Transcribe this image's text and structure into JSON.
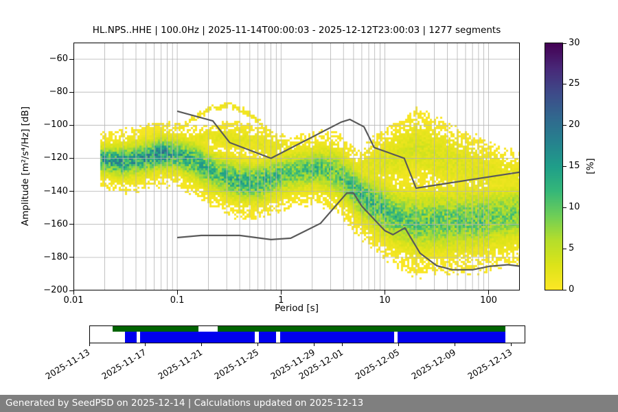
{
  "figure": {
    "background": "#ffffff",
    "footer_text": "Generated by SeedPSD on 2025-12-14 | Calculations updated on 2025-12-13",
    "footer_bg": "#7f7f7f",
    "footer_color": "#ffffff"
  },
  "chart_data": {
    "type": "heatmap",
    "subtype": "PPSD probabilistic power spectral density",
    "title": "HL.NPS..HHE | 100.0Hz | 2025-11-14T00:00:03 - 2025-12-12T23:00:03 | 1277 segments",
    "xlabel": "Period [s]",
    "ylabel": "Amplitude [m²/s⁴/Hz] [dB]",
    "xscale": "log",
    "xlim": [
      0.01,
      200
    ],
    "ylim": [
      -200,
      -50
    ],
    "x_tick_values": [
      0.01,
      0.1,
      1,
      10,
      100
    ],
    "x_tick_labels": [
      "0.01",
      "0.1",
      "1",
      "10",
      "100"
    ],
    "y_tick_values": [
      -60,
      -80,
      -100,
      -120,
      -140,
      -160,
      -180,
      -200
    ],
    "y_tick_labels": [
      "−60",
      "−80",
      "−100",
      "−120",
      "−140",
      "−160",
      "−180",
      "−200"
    ],
    "grid": true,
    "grid_color": "#b3b3b3",
    "frame_color": "#000000",
    "colorbar": {
      "label": "[%]",
      "min": 0,
      "max": 30,
      "tick_values": [
        0,
        5,
        10,
        15,
        20,
        25,
        30
      ],
      "tick_labels": [
        "0",
        "5",
        "10",
        "15",
        "20",
        "25",
        "30"
      ],
      "orientation": "vertical",
      "low_color_at_bottom": "#fde725",
      "high_color_at_top": "#440154",
      "viridis_stops": [
        "#440154",
        "#482878",
        "#3e4a89",
        "#31688e",
        "#26828e",
        "#1f9e89",
        "#35b779",
        "#6ece58",
        "#b5de2b",
        "#dce319",
        "#fde725"
      ]
    },
    "noise_models": {
      "color": "#5a5a5a",
      "line_width": 2.2,
      "nhnm_period_db": [
        [
          0.1,
          -91.5
        ],
        [
          0.22,
          -97.4
        ],
        [
          0.32,
          -110.5
        ],
        [
          0.8,
          -120.0
        ],
        [
          3.8,
          -98.1
        ],
        [
          4.6,
          -96.5
        ],
        [
          6.3,
          -101.0
        ],
        [
          7.9,
          -113.5
        ],
        [
          15.4,
          -120.0
        ],
        [
          20.0,
          -138.1
        ],
        [
          200.0,
          -128.4
        ]
      ],
      "nlnm_period_db": [
        [
          0.1,
          -168.0
        ],
        [
          0.17,
          -166.7
        ],
        [
          0.4,
          -166.7
        ],
        [
          0.8,
          -169.2
        ],
        [
          1.24,
          -168.4
        ],
        [
          2.4,
          -159.4
        ],
        [
          4.3,
          -141.1
        ],
        [
          5.0,
          -141.1
        ],
        [
          6.0,
          -149.0
        ],
        [
          10.0,
          -163.8
        ],
        [
          12.0,
          -166.2
        ],
        [
          15.6,
          -162.1
        ],
        [
          21.9,
          -177.5
        ],
        [
          31.6,
          -185.0
        ],
        [
          45.0,
          -187.5
        ],
        [
          70.0,
          -187.5
        ],
        [
          101.0,
          -185.4
        ],
        [
          154.0,
          -184.4
        ],
        [
          200.0,
          -185.3
        ]
      ]
    },
    "density_bands": [
      {
        "name": "main-mode",
        "halo": 0.22,
        "halo_width": 1.9,
        "points": [
          [
            0.018,
            -121,
            4,
            12
          ],
          [
            0.03,
            -122,
            5,
            12
          ],
          [
            0.045,
            -120,
            5,
            12
          ],
          [
            0.07,
            -117,
            5,
            13
          ],
          [
            0.1,
            -118,
            5,
            11
          ],
          [
            0.15,
            -122,
            6,
            10
          ],
          [
            0.25,
            -130,
            6,
            9
          ],
          [
            0.4,
            -134,
            6,
            10
          ],
          [
            0.6,
            -135,
            6,
            10
          ],
          [
            0.9,
            -131,
            6,
            9
          ],
          [
            1.4,
            -128,
            6,
            8
          ],
          [
            2.2,
            -126,
            6,
            9
          ],
          [
            3.2,
            -128,
            7,
            8
          ],
          [
            4.5,
            -135,
            7,
            9
          ],
          [
            6.0,
            -143,
            7,
            10
          ],
          [
            8.0,
            -148,
            8,
            9
          ],
          [
            12,
            -155,
            8,
            9
          ],
          [
            20,
            -159,
            9,
            8
          ],
          [
            40,
            -158,
            9,
            8
          ],
          [
            80,
            -157,
            9,
            8
          ],
          [
            150,
            -155,
            9,
            7
          ],
          [
            200,
            -153,
            9,
            7
          ]
        ]
      },
      {
        "name": "long-period-scatter",
        "halo": 0.5,
        "halo_width": 1.6,
        "points": [
          [
            5,
            -128,
            5,
            1.2
          ],
          [
            8,
            -124,
            7,
            1.8
          ],
          [
            12,
            -120,
            8,
            2.0
          ],
          [
            20,
            -114,
            9,
            2.2
          ],
          [
            35,
            -120,
            9,
            2.0
          ],
          [
            70,
            -126,
            8,
            1.8
          ],
          [
            120,
            -129,
            7,
            1.5
          ],
          [
            200,
            -131,
            6,
            1.3
          ]
        ]
      },
      {
        "name": "outlier-arc-short-period",
        "halo": 0,
        "halo_width": 1,
        "points": [
          [
            0.09,
            -108,
            1.2,
            1.2
          ],
          [
            0.14,
            -96,
            1.2,
            1.3
          ],
          [
            0.22,
            -89.5,
            1.2,
            1.4
          ],
          [
            0.32,
            -88,
            1.2,
            1.4
          ],
          [
            0.5,
            -93,
            1.2,
            1.3
          ],
          [
            0.75,
            -103,
            1.2,
            1.2
          ],
          [
            1.05,
            -112,
            1.2,
            1.1
          ]
        ]
      },
      {
        "name": "mid-band-streaks",
        "halo": 0.4,
        "halo_width": 2.0,
        "points": [
          [
            0.1,
            -111,
            2,
            1.2
          ],
          [
            0.2,
            -107,
            3,
            1.6
          ],
          [
            0.35,
            -108,
            4,
            1.8
          ],
          [
            0.6,
            -111,
            4,
            1.6
          ],
          [
            1.0,
            -114,
            4,
            1.4
          ],
          [
            1.8,
            -116,
            3,
            1.1
          ]
        ]
      },
      {
        "name": "outlier-arc-long-period",
        "halo": 0,
        "halo_width": 1,
        "points": [
          [
            7,
            -128,
            1.4,
            1.1
          ],
          [
            11,
            -116,
            1.4,
            1.3
          ],
          [
            18,
            -106,
            1.5,
            1.4
          ],
          [
            28,
            -109,
            1.5,
            1.3
          ],
          [
            50,
            -117,
            1.5,
            1.2
          ],
          [
            90,
            -124,
            1.4,
            1.1
          ]
        ]
      }
    ],
    "timeline": {
      "start_date": "2025-11-13",
      "total_days": 31,
      "tick_labels": [
        "2025-11-13",
        "2025-11-17",
        "2025-11-21",
        "2025-11-25",
        "2025-11-29",
        "2025-12-01",
        "2025-12-05",
        "2025-12-09",
        "2025-12-13"
      ],
      "tick_day_offsets": [
        0,
        4,
        8,
        12,
        16,
        18,
        22,
        26,
        30
      ],
      "green_color": "#006400",
      "blue_color": "#0000ee",
      "green_segments": [
        [
          0.052,
          0.249
        ],
        [
          0.293,
          0.955
        ]
      ],
      "blue_segments": [
        [
          0.08,
          0.108
        ],
        [
          0.115,
          0.38
        ],
        [
          0.389,
          0.428
        ],
        [
          0.437,
          0.7
        ],
        [
          0.707,
          0.955
        ]
      ]
    }
  }
}
